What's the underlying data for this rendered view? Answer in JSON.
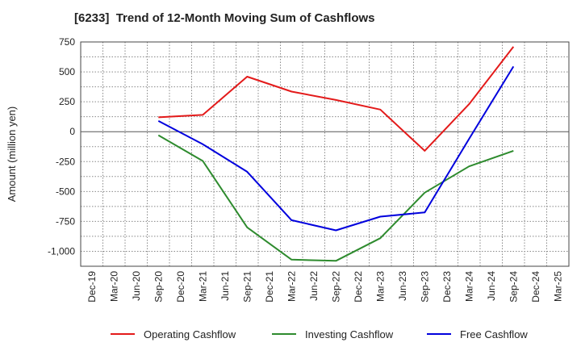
{
  "chart_data": {
    "type": "line",
    "title": "[6233]  Trend of 12-Month Moving Sum of Cashflows",
    "xlabel": "",
    "ylabel": "Amount (million yen)",
    "categories": [
      "Dec-19",
      "Mar-20",
      "Jun-20",
      "Sep-20",
      "Dec-20",
      "Mar-21",
      "Jun-21",
      "Sep-21",
      "Dec-21",
      "Mar-22",
      "Jun-22",
      "Sep-22",
      "Dec-22",
      "Mar-23",
      "Jun-23",
      "Sep-23",
      "Dec-23",
      "Mar-24",
      "Jun-24",
      "Sep-24",
      "Dec-24",
      "Mar-25"
    ],
    "ylim": [
      -1125,
      750
    ],
    "yticks": [
      750,
      500,
      250,
      0,
      -250,
      -500,
      -750,
      -1000
    ],
    "ytick_labels": [
      "750",
      "500",
      "250",
      "0",
      "-250",
      "-500",
      "-750",
      "-1,000"
    ],
    "grid": true,
    "legend_position": "bottom",
    "series": [
      {
        "name": "Operating Cashflow",
        "color": "#e31a1a",
        "values": [
          null,
          null,
          null,
          120,
          null,
          140,
          null,
          460,
          null,
          335,
          null,
          265,
          null,
          185,
          null,
          -160,
          null,
          230,
          null,
          710,
          null,
          null
        ]
      },
      {
        "name": "Investing Cashflow",
        "color": "#2e8b2e",
        "values": [
          null,
          null,
          null,
          -30,
          null,
          -245,
          null,
          -800,
          null,
          -1070,
          null,
          -1080,
          null,
          -890,
          null,
          -510,
          null,
          -290,
          null,
          -160,
          null,
          null
        ]
      },
      {
        "name": "Free Cashflow",
        "color": "#0000dd",
        "values": [
          null,
          null,
          null,
          90,
          null,
          -105,
          null,
          -335,
          null,
          -740,
          null,
          -825,
          null,
          -710,
          null,
          -675,
          null,
          -60,
          null,
          545,
          null,
          null
        ]
      }
    ]
  }
}
